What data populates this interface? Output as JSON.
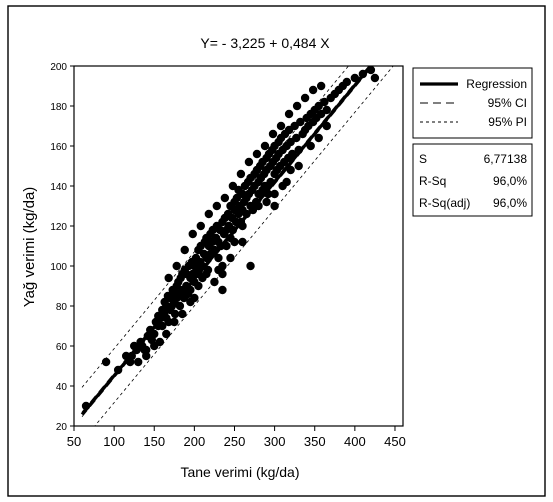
{
  "chart_data": {
    "type": "scatter",
    "title": "Y= - 3,225 + 0,484 X",
    "xlabel": "Tane verimi (kg/da)",
    "ylabel": "Yağ verimi (kg/da)",
    "xlim": [
      50,
      460
    ],
    "ylim": [
      20,
      200
    ],
    "xticks": [
      50,
      100,
      150,
      200,
      250,
      300,
      350,
      400,
      450
    ],
    "yticks": [
      20,
      40,
      60,
      80,
      100,
      120,
      140,
      160,
      180,
      200
    ],
    "regression": {
      "intercept": -3.225,
      "slope": 0.484
    },
    "ci_halfwidth": 1.2,
    "pi_halfwidth": 13.5,
    "legend": {
      "position": "right",
      "items": [
        {
          "label": "Regression",
          "style": "solid"
        },
        {
          "label": "95% CI",
          "style": "dashed"
        },
        {
          "label": "95% PI",
          "style": "dashed-fine"
        }
      ]
    },
    "stats": [
      {
        "label": "S",
        "value": "6,77138"
      },
      {
        "label": "R-Sq",
        "value": "96,0%"
      },
      {
        "label": "R-Sq(adj)",
        "value": "96,0%"
      }
    ],
    "points": [
      [
        65,
        30
      ],
      [
        90,
        52
      ],
      [
        105,
        48
      ],
      [
        115,
        55
      ],
      [
        122,
        55
      ],
      [
        128,
        58
      ],
      [
        130,
        52
      ],
      [
        133,
        62
      ],
      [
        135,
        60
      ],
      [
        138,
        58
      ],
      [
        140,
        55
      ],
      [
        142,
        65
      ],
      [
        145,
        68
      ],
      [
        147,
        63
      ],
      [
        150,
        66
      ],
      [
        152,
        72
      ],
      [
        155,
        70
      ],
      [
        155,
        75
      ],
      [
        157,
        62
      ],
      [
        158,
        74
      ],
      [
        160,
        78
      ],
      [
        160,
        70
      ],
      [
        162,
        76
      ],
      [
        163,
        82
      ],
      [
        165,
        80
      ],
      [
        165,
        74
      ],
      [
        167,
        85
      ],
      [
        168,
        72
      ],
      [
        170,
        84
      ],
      [
        170,
        78
      ],
      [
        172,
        80
      ],
      [
        173,
        88
      ],
      [
        175,
        86
      ],
      [
        175,
        82
      ],
      [
        176,
        76
      ],
      [
        178,
        90
      ],
      [
        178,
        84
      ],
      [
        180,
        92
      ],
      [
        180,
        86
      ],
      [
        182,
        80
      ],
      [
        183,
        94
      ],
      [
        185,
        88
      ],
      [
        185,
        96
      ],
      [
        187,
        84
      ],
      [
        188,
        98
      ],
      [
        190,
        90
      ],
      [
        190,
        96
      ],
      [
        192,
        86
      ],
      [
        193,
        100
      ],
      [
        195,
        94
      ],
      [
        195,
        88
      ],
      [
        197,
        102
      ],
      [
        198,
        96
      ],
      [
        200,
        100
      ],
      [
        200,
        92
      ],
      [
        202,
        104
      ],
      [
        203,
        98
      ],
      [
        205,
        96
      ],
      [
        205,
        108
      ],
      [
        207,
        102
      ],
      [
        208,
        110
      ],
      [
        210,
        100
      ],
      [
        210,
        94
      ],
      [
        212,
        106
      ],
      [
        213,
        112
      ],
      [
        215,
        104
      ],
      [
        215,
        114
      ],
      [
        217,
        98
      ],
      [
        218,
        110
      ],
      [
        220,
        116
      ],
      [
        220,
        106
      ],
      [
        222,
        112
      ],
      [
        223,
        118
      ],
      [
        225,
        108
      ],
      [
        225,
        92
      ],
      [
        227,
        114
      ],
      [
        228,
        120
      ],
      [
        230,
        112
      ],
      [
        230,
        98
      ],
      [
        232,
        118
      ],
      [
        233,
        110
      ],
      [
        235,
        122
      ],
      [
        235,
        96
      ],
      [
        237,
        116
      ],
      [
        238,
        124
      ],
      [
        240,
        118
      ],
      [
        240,
        110
      ],
      [
        242,
        126
      ],
      [
        243,
        120
      ],
      [
        245,
        114
      ],
      [
        245,
        130
      ],
      [
        247,
        124
      ],
      [
        248,
        118
      ],
      [
        250,
        128
      ],
      [
        250,
        132
      ],
      [
        252,
        122
      ],
      [
        253,
        134
      ],
      [
        255,
        126
      ],
      [
        255,
        138
      ],
      [
        257,
        130
      ],
      [
        258,
        122
      ],
      [
        260,
        136
      ],
      [
        260,
        128
      ],
      [
        262,
        132
      ],
      [
        263,
        140
      ],
      [
        265,
        134
      ],
      [
        265,
        126
      ],
      [
        267,
        142
      ],
      [
        268,
        136
      ],
      [
        270,
        130
      ],
      [
        270,
        144
      ],
      [
        272,
        138
      ],
      [
        273,
        128
      ],
      [
        275,
        146
      ],
      [
        275,
        140
      ],
      [
        277,
        132
      ],
      [
        278,
        148
      ],
      [
        280,
        142
      ],
      [
        280,
        136
      ],
      [
        282,
        150
      ],
      [
        283,
        144
      ],
      [
        285,
        138
      ],
      [
        285,
        152
      ],
      [
        287,
        146
      ],
      [
        288,
        140
      ],
      [
        290,
        154
      ],
      [
        290,
        148
      ],
      [
        292,
        136
      ],
      [
        293,
        156
      ],
      [
        295,
        150
      ],
      [
        295,
        142
      ],
      [
        297,
        158
      ],
      [
        298,
        152
      ],
      [
        300,
        146
      ],
      [
        300,
        160
      ],
      [
        302,
        154
      ],
      [
        303,
        148
      ],
      [
        305,
        162
      ],
      [
        305,
        156
      ],
      [
        307,
        150
      ],
      [
        308,
        164
      ],
      [
        310,
        158
      ],
      [
        312,
        152
      ],
      [
        313,
        166
      ],
      [
        315,
        160
      ],
      [
        317,
        154
      ],
      [
        318,
        168
      ],
      [
        320,
        162
      ],
      [
        322,
        156
      ],
      [
        325,
        170
      ],
      [
        327,
        164
      ],
      [
        330,
        158
      ],
      [
        332,
        172
      ],
      [
        335,
        166
      ],
      [
        338,
        168
      ],
      [
        340,
        174
      ],
      [
        342,
        170
      ],
      [
        345,
        176
      ],
      [
        348,
        172
      ],
      [
        350,
        178
      ],
      [
        352,
        174
      ],
      [
        355,
        180
      ],
      [
        358,
        176
      ],
      [
        362,
        182
      ],
      [
        365,
        178
      ],
      [
        370,
        184
      ],
      [
        375,
        186
      ],
      [
        380,
        188
      ],
      [
        385,
        190
      ],
      [
        390,
        192
      ],
      [
        400,
        194
      ],
      [
        410,
        196
      ],
      [
        420,
        198
      ],
      [
        425,
        194
      ],
      [
        270,
        100
      ],
      [
        260,
        112
      ],
      [
        235,
        88
      ],
      [
        200,
        84
      ],
      [
        175,
        72
      ],
      [
        300,
        130
      ],
      [
        310,
        140
      ],
      [
        320,
        148
      ],
      [
        250,
        112
      ],
      [
        245,
        104
      ],
      [
        230,
        104
      ],
      [
        215,
        96
      ],
      [
        205,
        90
      ],
      [
        195,
        82
      ],
      [
        185,
        76
      ],
      [
        165,
        66
      ],
      [
        150,
        60
      ],
      [
        140,
        58
      ],
      [
        125,
        60
      ],
      [
        120,
        52
      ],
      [
        168,
        94
      ],
      [
        178,
        100
      ],
      [
        188,
        108
      ],
      [
        198,
        116
      ],
      [
        208,
        120
      ],
      [
        218,
        126
      ],
      [
        228,
        130
      ],
      [
        238,
        134
      ],
      [
        248,
        140
      ],
      [
        258,
        146
      ],
      [
        268,
        152
      ],
      [
        278,
        156
      ],
      [
        288,
        160
      ],
      [
        298,
        166
      ],
      [
        308,
        170
      ],
      [
        318,
        176
      ],
      [
        328,
        180
      ],
      [
        338,
        184
      ],
      [
        348,
        188
      ],
      [
        358,
        190
      ],
      [
        235,
        100
      ],
      [
        260,
        120
      ],
      [
        280,
        130
      ],
      [
        290,
        132
      ],
      [
        300,
        136
      ],
      [
        315,
        142
      ],
      [
        330,
        150
      ],
      [
        345,
        160
      ],
      [
        355,
        164
      ],
      [
        365,
        170
      ]
    ]
  }
}
